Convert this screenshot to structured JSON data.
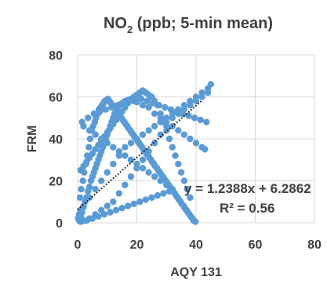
{
  "chart_data": {
    "type": "scatter",
    "title_main": "NO",
    "title_sub": "2",
    "title_rest": " (ppb; 5-min mean)",
    "xlabel": "AQY 131",
    "ylabel": "FRM",
    "xlim": [
      0,
      80
    ],
    "ylim": [
      0,
      80
    ],
    "xticks": [
      "0",
      "20",
      "40",
      "60",
      "80"
    ],
    "yticks": [
      "0",
      "20",
      "40",
      "60",
      "80"
    ],
    "grid": true,
    "series": [
      {
        "color": "#5b9bd5",
        "points": [
          [
            0.5,
            1.0
          ],
          [
            1.0,
            3.0
          ],
          [
            1.5,
            5.0
          ],
          [
            2.0,
            7.5
          ],
          [
            2.5,
            10.0
          ],
          [
            3.0,
            12.0
          ],
          [
            3.5,
            15.0
          ],
          [
            4.0,
            17.0
          ],
          [
            4.5,
            20.0
          ],
          [
            5.0,
            22.0
          ],
          [
            5.5,
            24.0
          ],
          [
            6.0,
            26.0
          ],
          [
            6.5,
            28.0
          ],
          [
            7.0,
            30.0
          ],
          [
            7.5,
            32.0
          ],
          [
            8.0,
            34.0
          ],
          [
            8.5,
            36.0
          ],
          [
            9.0,
            38.0
          ],
          [
            9.5,
            40.0
          ],
          [
            10.0,
            42.0
          ],
          [
            10.5,
            44.0
          ],
          [
            11.0,
            46.0
          ],
          [
            11.5,
            48.0
          ],
          [
            12.0,
            50.0
          ],
          [
            12.5,
            52.0
          ],
          [
            13.0,
            54.0
          ],
          [
            13.5,
            55.0
          ],
          [
            14.0,
            56.0
          ],
          [
            15.0,
            57.0
          ],
          [
            16.0,
            58.0
          ],
          [
            17.0,
            58.5
          ],
          [
            18.0,
            59.0
          ],
          [
            19.0,
            58.0
          ],
          [
            20.0,
            57.5
          ],
          [
            22.0,
            56.0
          ],
          [
            24.0,
            55.0
          ],
          [
            26.0,
            52.0
          ],
          [
            28.0,
            50.0
          ],
          [
            30.0,
            48.0
          ],
          [
            32.0,
            46.0
          ],
          [
            34.0,
            44.0
          ],
          [
            36.0,
            42.0
          ],
          [
            38.0,
            40.0
          ],
          [
            40.0,
            38.0
          ],
          [
            42.0,
            36.0
          ],
          [
            43.0,
            35.0
          ],
          [
            44.0,
            62.0
          ],
          [
            42.0,
            60.0
          ],
          [
            40.0,
            58.0
          ],
          [
            38.0,
            56.0
          ],
          [
            36.0,
            54.0
          ],
          [
            34.0,
            52.0
          ],
          [
            32.0,
            50.0
          ],
          [
            30.0,
            46.0
          ],
          [
            28.0,
            42.0
          ],
          [
            26.0,
            38.0
          ],
          [
            24.0,
            34.0
          ],
          [
            22.0,
            30.0
          ],
          [
            20.0,
            26.0
          ],
          [
            18.0,
            22.0
          ],
          [
            16.0,
            18.0
          ],
          [
            14.0,
            14.0
          ],
          [
            12.0,
            10.0
          ],
          [
            10.0,
            8.0
          ],
          [
            8.0,
            6.0
          ],
          [
            6.0,
            4.0
          ],
          [
            4.0,
            2.0
          ],
          [
            2.0,
            1.0
          ],
          [
            1.0,
            0.5
          ],
          [
            3.0,
            1.0
          ],
          [
            5.0,
            2.0
          ],
          [
            7.0,
            3.0
          ],
          [
            9.0,
            4.0
          ],
          [
            11.0,
            5.0
          ],
          [
            13.0,
            6.0
          ],
          [
            15.0,
            7.0
          ],
          [
            17.0,
            8.0
          ],
          [
            19.0,
            9.0
          ],
          [
            21.0,
            10.0
          ],
          [
            23.0,
            11.0
          ],
          [
            25.0,
            12.0
          ],
          [
            27.0,
            13.0
          ],
          [
            29.0,
            14.0
          ],
          [
            31.0,
            15.0
          ],
          [
            32.0,
            16.0
          ],
          [
            30.0,
            18.0
          ],
          [
            28.0,
            20.0
          ],
          [
            26.0,
            22.0
          ],
          [
            24.0,
            24.0
          ],
          [
            22.0,
            26.0
          ],
          [
            20.0,
            28.0
          ],
          [
            18.0,
            30.0
          ],
          [
            16.0,
            32.0
          ],
          [
            14.0,
            34.0
          ],
          [
            12.0,
            36.0
          ],
          [
            10.0,
            38.0
          ],
          [
            8.0,
            40.0
          ],
          [
            6.0,
            42.0
          ],
          [
            4.0,
            44.0
          ],
          [
            2.0,
            46.0
          ],
          [
            1.5,
            48.0
          ],
          [
            3.5,
            50.0
          ],
          [
            5.5,
            52.0
          ],
          [
            7.5,
            53.0
          ],
          [
            9.5,
            54.0
          ],
          [
            11.5,
            55.0
          ],
          [
            13.5,
            56.0
          ],
          [
            15.5,
            57.0
          ],
          [
            17.5,
            58.0
          ],
          [
            19.5,
            58.5
          ],
          [
            21.5,
            59.0
          ],
          [
            23.5,
            58.0
          ],
          [
            25.5,
            57.0
          ],
          [
            27.5,
            56.0
          ],
          [
            29.5,
            55.0
          ],
          [
            31.5,
            54.0
          ],
          [
            33.5,
            53.0
          ],
          [
            35.5,
            52.0
          ],
          [
            37.5,
            51.0
          ],
          [
            39.5,
            50.0
          ],
          [
            41.5,
            49.0
          ],
          [
            43.5,
            48.0
          ],
          [
            45.0,
            66.0
          ],
          [
            44.0,
            64.0
          ],
          [
            42.0,
            62.0
          ],
          [
            40.0,
            60.0
          ],
          [
            38.0,
            58.0
          ],
          [
            36.0,
            56.0
          ],
          [
            34.0,
            54.0
          ],
          [
            32.0,
            52.0
          ],
          [
            30.0,
            50.0
          ],
          [
            28.0,
            48.0
          ],
          [
            26.0,
            46.0
          ],
          [
            24.0,
            44.0
          ],
          [
            22.0,
            42.0
          ],
          [
            20.0,
            40.0
          ],
          [
            18.0,
            38.0
          ],
          [
            16.0,
            36.0
          ],
          [
            14.0,
            32.0
          ],
          [
            12.0,
            28.0
          ],
          [
            10.0,
            24.0
          ],
          [
            8.0,
            20.0
          ],
          [
            6.0,
            16.0
          ],
          [
            4.0,
            12.0
          ],
          [
            2.0,
            8.0
          ],
          [
            1.0,
            6.0
          ],
          [
            0.5,
            4.0
          ],
          [
            0.2,
            2.0
          ],
          [
            0.8,
            12.0
          ],
          [
            1.2,
            16.0
          ],
          [
            1.8,
            20.0
          ],
          [
            2.2,
            24.0
          ],
          [
            2.8,
            28.0
          ],
          [
            3.2,
            32.0
          ],
          [
            3.8,
            36.0
          ],
          [
            4.2,
            40.0
          ],
          [
            4.8,
            44.0
          ],
          [
            5.2,
            46.0
          ],
          [
            5.8,
            48.0
          ],
          [
            6.2,
            50.0
          ],
          [
            6.8,
            52.0
          ],
          [
            7.2,
            54.0
          ],
          [
            7.8,
            55.0
          ],
          [
            8.2,
            56.0
          ],
          [
            8.8,
            57.0
          ],
          [
            9.2,
            58.0
          ],
          [
            9.8,
            58.5
          ],
          [
            10.2,
            59.0
          ],
          [
            10.8,
            58.0
          ],
          [
            11.2,
            57.0
          ],
          [
            11.8,
            56.0
          ],
          [
            12.2,
            55.0
          ],
          [
            12.8,
            54.0
          ],
          [
            13.2,
            53.0
          ],
          [
            13.8,
            52.0
          ],
          [
            14.2,
            51.0
          ],
          [
            14.8,
            50.0
          ],
          [
            15.2,
            49.0
          ],
          [
            15.8,
            48.0
          ],
          [
            16.2,
            47.0
          ],
          [
            16.8,
            46.0
          ],
          [
            17.2,
            45.0
          ],
          [
            17.8,
            44.0
          ],
          [
            18.2,
            43.0
          ],
          [
            18.8,
            42.0
          ],
          [
            19.2,
            41.0
          ],
          [
            19.8,
            40.0
          ],
          [
            20.2,
            39.0
          ],
          [
            20.8,
            38.0
          ],
          [
            21.2,
            37.0
          ],
          [
            21.8,
            36.0
          ],
          [
            22.2,
            35.0
          ],
          [
            22.8,
            34.0
          ],
          [
            23.2,
            33.0
          ],
          [
            23.8,
            32.0
          ],
          [
            24.2,
            31.0
          ],
          [
            24.8,
            30.0
          ],
          [
            25.2,
            29.0
          ],
          [
            25.8,
            28.0
          ],
          [
            26.2,
            27.0
          ],
          [
            26.8,
            26.0
          ],
          [
            27.2,
            25.0
          ],
          [
            27.8,
            24.0
          ],
          [
            28.2,
            23.0
          ],
          [
            28.8,
            22.0
          ],
          [
            29.2,
            21.0
          ],
          [
            29.8,
            20.0
          ],
          [
            30.2,
            19.0
          ],
          [
            30.8,
            18.0
          ],
          [
            31.2,
            17.0
          ],
          [
            31.8,
            16.0
          ],
          [
            32.2,
            15.0
          ],
          [
            32.8,
            14.0
          ],
          [
            33.2,
            13.0
          ],
          [
            33.8,
            12.0
          ],
          [
            34.2,
            11.0
          ],
          [
            34.8,
            10.0
          ],
          [
            35.2,
            9.0
          ],
          [
            35.8,
            8.0
          ],
          [
            36.2,
            7.0
          ],
          [
            36.8,
            6.0
          ],
          [
            37.2,
            5.0
          ],
          [
            37.8,
            4.0
          ],
          [
            38.2,
            3.0
          ],
          [
            38.8,
            2.0
          ],
          [
            39.2,
            1.0
          ],
          [
            39.8,
            0.5
          ],
          [
            38.0,
            12.0
          ],
          [
            37.0,
            16.0
          ],
          [
            36.0,
            20.0
          ],
          [
            35.0,
            24.0
          ],
          [
            34.0,
            28.0
          ],
          [
            33.0,
            32.0
          ],
          [
            32.0,
            36.0
          ],
          [
            31.0,
            40.0
          ],
          [
            30.0,
            44.0
          ],
          [
            29.0,
            48.0
          ],
          [
            28.0,
            52.0
          ],
          [
            27.0,
            56.0
          ],
          [
            26.0,
            58.0
          ],
          [
            25.0,
            60.0
          ],
          [
            24.0,
            61.0
          ],
          [
            23.0,
            62.0
          ],
          [
            22.0,
            63.0
          ],
          [
            21.0,
            62.0
          ],
          [
            20.0,
            61.0
          ],
          [
            19.0,
            60.0
          ],
          [
            18.0,
            59.0
          ],
          [
            17.0,
            57.0
          ],
          [
            16.0,
            55.0
          ],
          [
            15.0,
            53.0
          ],
          [
            14.0,
            51.0
          ],
          [
            13.0,
            49.0
          ],
          [
            12.0,
            47.0
          ],
          [
            11.0,
            45.0
          ],
          [
            10.0,
            43.0
          ],
          [
            9.0,
            41.0
          ],
          [
            8.0,
            39.0
          ],
          [
            7.0,
            37.0
          ],
          [
            6.0,
            35.0
          ],
          [
            5.0,
            33.0
          ],
          [
            4.0,
            31.0
          ],
          [
            3.0,
            29.0
          ],
          [
            2.0,
            27.0
          ],
          [
            1.0,
            25.0
          ]
        ]
      }
    ],
    "trendline": {
      "slope": 1.2388,
      "intercept": 6.2862,
      "x_range": [
        0,
        42
      ],
      "style": "dotted",
      "color": "#000000",
      "equation": "y = 1.2388x + 6.2862",
      "r2": "R² = 0.56"
    }
  }
}
